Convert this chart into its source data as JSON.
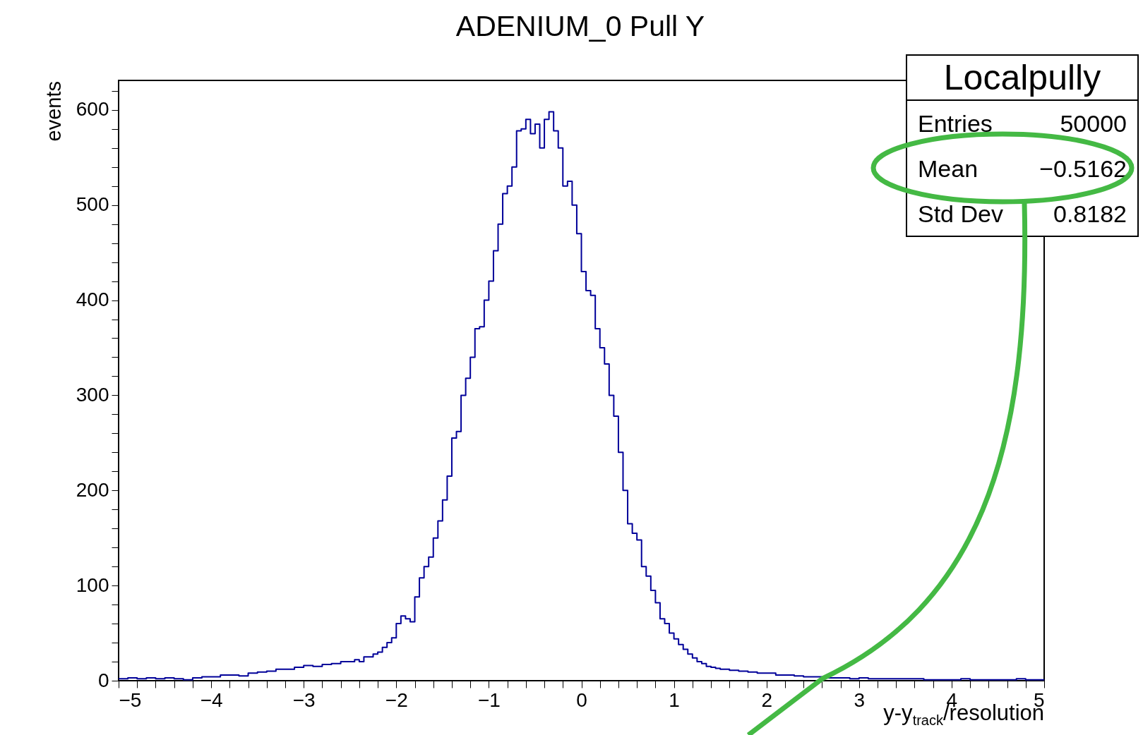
{
  "chart_data": {
    "type": "histogram",
    "title": "ADENIUM_0 Pull Y",
    "xlabel": "y-y$_{track}$/resolution",
    "ylabel": "events",
    "color": "#000099",
    "bins": [
      -5,
      -4.9,
      -4.8,
      -4.7,
      -4.6,
      -4.5,
      -4.4,
      -4.3,
      -4.2,
      -4.1,
      -4,
      -3.9,
      -3.8,
      -3.7,
      -3.6,
      -3.5,
      -3.4,
      -3.3,
      -3.2,
      -3.1,
      -3,
      -2.9,
      -2.8,
      -2.7,
      -2.6,
      -2.5,
      -2.45,
      -2.4,
      -2.35,
      -2.3,
      -2.25,
      -2.2,
      -2.15,
      -2.1,
      -2.05,
      -2,
      -1.95,
      -1.9,
      -1.85,
      -1.8,
      -1.75,
      -1.7,
      -1.65,
      -1.6,
      -1.55,
      -1.5,
      -1.45,
      -1.4,
      -1.35,
      -1.3,
      -1.25,
      -1.2,
      -1.15,
      -1.1,
      -1.05,
      -1,
      -0.95,
      -0.9,
      -0.85,
      -0.8,
      -0.75,
      -0.7,
      -0.65,
      -0.6,
      -0.55,
      -0.5,
      -0.45,
      -0.4,
      -0.35,
      -0.3,
      -0.25,
      -0.2,
      -0.15,
      -0.1,
      -0.05,
      0,
      0.05,
      0.1,
      0.15,
      0.2,
      0.25,
      0.3,
      0.35,
      0.4,
      0.45,
      0.5,
      0.55,
      0.6,
      0.65,
      0.7,
      0.75,
      0.8,
      0.85,
      0.9,
      0.95,
      1,
      1.05,
      1.1,
      1.15,
      1.2,
      1.25,
      1.3,
      1.35,
      1.4,
      1.45,
      1.5,
      1.6,
      1.7,
      1.8,
      1.9,
      2,
      2.1,
      2.2,
      2.3,
      2.4,
      2.5,
      2.6,
      2.7,
      2.8,
      2.9,
      3,
      3.1,
      3.2,
      3.3,
      3.4,
      3.5,
      3.6,
      3.7,
      3.8,
      3.9,
      4,
      4.1,
      4.2,
      4.3,
      4.4,
      4.5,
      4.6,
      4.7,
      4.8,
      4.9,
      5
    ],
    "values": [
      2,
      3,
      2,
      3,
      2,
      3,
      2,
      1,
      3,
      4,
      4,
      6,
      6,
      5,
      8,
      9,
      10,
      12,
      12,
      14,
      16,
      15,
      17,
      18,
      20,
      20,
      22,
      20,
      25,
      25,
      28,
      30,
      35,
      40,
      45,
      60,
      68,
      65,
      62,
      88,
      108,
      120,
      130,
      150,
      168,
      190,
      215,
      255,
      262,
      300,
      318,
      340,
      370,
      372,
      400,
      420,
      452,
      480,
      512,
      520,
      540,
      578,
      580,
      590,
      575,
      585,
      560,
      590,
      598,
      578,
      560,
      520,
      525,
      500,
      470,
      430,
      410,
      405,
      370,
      350,
      333,
      300,
      278,
      240,
      200,
      165,
      155,
      148,
      120,
      110,
      95,
      82,
      65,
      60,
      50,
      44,
      38,
      33,
      28,
      24,
      20,
      18,
      15,
      14,
      13,
      12,
      11,
      10,
      9,
      8,
      8,
      6,
      6,
      5,
      4,
      4,
      3,
      3,
      3,
      2,
      3,
      2,
      2,
      2,
      2,
      2,
      2,
      1,
      1,
      1,
      1,
      2,
      1,
      1,
      1,
      1,
      1,
      2,
      1,
      1
    ],
    "xlim": [
      -5,
      5
    ],
    "xticks": [
      -5,
      {
        "value": -4.8,
        "label": null
      },
      {
        "value": -4.6,
        "label": null
      },
      {
        "value": -4.4,
        "label": null
      },
      {
        "value": -4.2,
        "label": null
      },
      -4,
      {
        "value": -3.8,
        "label": null
      },
      {
        "value": -3.6,
        "label": null
      },
      {
        "value": -3.4,
        "label": null
      },
      {
        "value": -3.2,
        "label": null
      },
      -3,
      {
        "value": -2.8,
        "label": null
      },
      {
        "value": -2.6,
        "label": null
      },
      {
        "value": -2.4,
        "label": null
      },
      {
        "value": -2.2,
        "label": null
      },
      -2,
      {
        "value": -1.8,
        "label": null
      },
      {
        "value": -1.6,
        "label": null
      },
      {
        "value": -1.4,
        "label": null
      },
      {
        "value": -1.2,
        "label": null
      },
      -1,
      {
        "value": -0.8,
        "label": null
      },
      {
        "value": -0.6,
        "label": null
      },
      {
        "value": -0.4,
        "label": null
      },
      {
        "value": -0.2,
        "label": null
      },
      0,
      {
        "value": 0.2,
        "label": null
      },
      {
        "value": 0.4,
        "label": null
      },
      {
        "value": 0.6,
        "label": null
      },
      {
        "value": 0.8,
        "label": null
      },
      1,
      {
        "value": 1.2,
        "label": null
      },
      {
        "value": 1.4,
        "label": null
      },
      {
        "value": 1.6,
        "label": null
      },
      {
        "value": 1.8,
        "label": null
      },
      2,
      {
        "value": 2.2,
        "label": null
      },
      {
        "value": 2.4,
        "label": null
      },
      {
        "value": 2.6,
        "label": null
      },
      {
        "value": 2.8,
        "label": null
      },
      3,
      {
        "value": 3.2,
        "label": null
      },
      {
        "value": 3.4,
        "label": null
      },
      {
        "value": 3.6,
        "label": null
      },
      {
        "value": 3.8,
        "label": null
      },
      4,
      {
        "value": 4.2,
        "label": null
      },
      {
        "value": 4.4,
        "label": null
      },
      {
        "value": 4.6,
        "label": null
      },
      {
        "value": 4.8,
        "label": null
      },
      5
    ],
    "ylim": [
      0,
      631
    ],
    "yticks": [
      0,
      {
        "value": 20,
        "label": null
      },
      {
        "value": 40,
        "label": null
      },
      {
        "value": 60,
        "label": null
      },
      {
        "value": 80,
        "label": null
      },
      100,
      {
        "value": 120,
        "label": null
      },
      {
        "value": 140,
        "label": null
      },
      {
        "value": 160,
        "label": null
      },
      {
        "value": 180,
        "label": null
      },
      200,
      {
        "value": 220,
        "label": null
      },
      {
        "value": 240,
        "label": null
      },
      {
        "value": 260,
        "label": null
      },
      {
        "value": 280,
        "label": null
      },
      300,
      {
        "value": 320,
        "label": null
      },
      {
        "value": 340,
        "label": null
      },
      {
        "value": 360,
        "label": null
      },
      {
        "value": 380,
        "label": null
      },
      400,
      {
        "value": 420,
        "label": null
      },
      {
        "value": 440,
        "label": null
      },
      {
        "value": 460,
        "label": null
      },
      {
        "value": 480,
        "label": null
      },
      500,
      {
        "value": 520,
        "label": null
      },
      {
        "value": 540,
        "label": null
      },
      {
        "value": 560,
        "label": null
      },
      {
        "value": 580,
        "label": null
      },
      600,
      {
        "value": 620,
        "label": null
      }
    ],
    "annotations": [
      "Localpully",
      "Entries",
      "50000",
      "Mean",
      "−0.5162",
      "Std Dev",
      "0.8182"
    ]
  }
}
